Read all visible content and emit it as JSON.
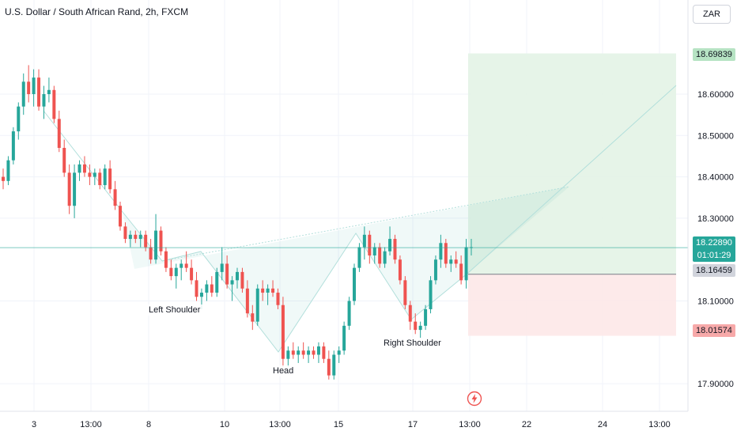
{
  "header": {
    "title": "U.S. Dollar / South African Rand, 2h, FXCM",
    "currency_button": "ZAR"
  },
  "price_labels": {
    "target": "18.69839",
    "current": "18.22890",
    "countdown": "01:01:29",
    "entry": "18.16459",
    "stop": "18.01574"
  },
  "annotations": {
    "left_shoulder": "Left Shoulder",
    "head": "Head",
    "right_shoulder": "Right Shoulder"
  },
  "icons": {
    "alert": "lightning-bolt-icon"
  },
  "colors": {
    "up": "#26a69a",
    "down": "#ef5350",
    "profit_zone": "#e3f3e6",
    "loss_zone": "#fde8e8",
    "target_label": "#b6e3c3",
    "current_label": "#26a69a",
    "entry_label": "#d1d4dc",
    "stop_label": "#f7a9a9"
  },
  "chart_data": {
    "type": "candlestick",
    "y_ticks": [
      "18.60000",
      "18.50000",
      "18.40000",
      "18.30000",
      "18.10000",
      "17.90000"
    ],
    "x_ticks": [
      "3",
      "13:00",
      "8",
      "10",
      "13:00",
      "15",
      "17",
      "13:00",
      "22",
      "24",
      "13:00"
    ],
    "ylim": [
      17.86,
      18.77
    ],
    "candles": [
      [
        18.4,
        18.42,
        18.37,
        18.39
      ],
      [
        18.39,
        18.45,
        18.38,
        18.44
      ],
      [
        18.44,
        18.52,
        18.43,
        18.51
      ],
      [
        18.51,
        18.58,
        18.49,
        18.57
      ],
      [
        18.57,
        18.65,
        18.55,
        18.63
      ],
      [
        18.63,
        18.67,
        18.58,
        18.6
      ],
      [
        18.6,
        18.66,
        18.57,
        18.64
      ],
      [
        18.64,
        18.66,
        18.56,
        18.57
      ],
      [
        18.57,
        18.62,
        18.54,
        18.6
      ],
      [
        18.6,
        18.64,
        18.58,
        18.61
      ],
      [
        18.61,
        18.62,
        18.53,
        18.54
      ],
      [
        18.54,
        18.56,
        18.46,
        18.47
      ],
      [
        18.47,
        18.49,
        18.4,
        18.41
      ],
      [
        18.41,
        18.43,
        18.31,
        18.33
      ],
      [
        18.33,
        18.43,
        18.3,
        18.41
      ],
      [
        18.41,
        18.44,
        18.39,
        18.43
      ],
      [
        18.43,
        18.45,
        18.4,
        18.41
      ],
      [
        18.41,
        18.43,
        18.38,
        18.4
      ],
      [
        18.4,
        18.42,
        18.38,
        18.41
      ],
      [
        18.41,
        18.42,
        18.37,
        18.38
      ],
      [
        18.38,
        18.43,
        18.37,
        18.42
      ],
      [
        18.42,
        18.44,
        18.36,
        18.37
      ],
      [
        18.37,
        18.39,
        18.32,
        18.33
      ],
      [
        18.33,
        18.34,
        18.27,
        18.28
      ],
      [
        18.28,
        18.29,
        18.24,
        18.25
      ],
      [
        18.25,
        18.27,
        18.23,
        18.26
      ],
      [
        18.26,
        18.27,
        18.24,
        18.25
      ],
      [
        18.25,
        18.27,
        18.23,
        18.26
      ],
      [
        18.26,
        18.27,
        18.22,
        18.23
      ],
      [
        18.23,
        18.25,
        18.19,
        18.2
      ],
      [
        18.2,
        18.31,
        18.19,
        18.27
      ],
      [
        18.27,
        18.28,
        18.21,
        18.22
      ],
      [
        18.22,
        18.23,
        18.17,
        18.18
      ],
      [
        18.18,
        18.2,
        18.15,
        18.16
      ],
      [
        18.16,
        18.19,
        18.13,
        18.18
      ],
      [
        18.18,
        18.2,
        18.15,
        18.19
      ],
      [
        18.19,
        18.22,
        18.17,
        18.18
      ],
      [
        18.18,
        18.2,
        18.14,
        18.15
      ],
      [
        18.15,
        18.17,
        18.1,
        18.11
      ],
      [
        18.11,
        18.13,
        18.08,
        18.12
      ],
      [
        18.12,
        18.15,
        18.1,
        18.14
      ],
      [
        18.14,
        18.16,
        18.11,
        18.12
      ],
      [
        18.12,
        18.18,
        18.11,
        18.17
      ],
      [
        18.17,
        18.23,
        18.15,
        18.19
      ],
      [
        18.19,
        18.21,
        18.13,
        18.14
      ],
      [
        18.14,
        18.16,
        18.1,
        18.15
      ],
      [
        18.15,
        18.18,
        18.13,
        18.17
      ],
      [
        18.17,
        18.18,
        18.12,
        18.13
      ],
      [
        18.13,
        18.15,
        18.06,
        18.07
      ],
      [
        18.07,
        18.09,
        18.03,
        18.05
      ],
      [
        18.05,
        18.14,
        18.04,
        18.13
      ],
      [
        18.13,
        18.15,
        18.1,
        18.12
      ],
      [
        18.12,
        18.14,
        18.09,
        18.13
      ],
      [
        18.13,
        18.15,
        18.11,
        18.12
      ],
      [
        18.12,
        18.13,
        18.08,
        18.09
      ],
      [
        18.09,
        18.11,
        17.94,
        17.96
      ],
      [
        17.96,
        17.99,
        17.94,
        17.98
      ],
      [
        17.98,
        18.0,
        17.96,
        17.97
      ],
      [
        17.97,
        17.99,
        17.95,
        17.98
      ],
      [
        17.98,
        18.0,
        17.96,
        17.97
      ],
      [
        17.97,
        17.99,
        17.95,
        17.98
      ],
      [
        17.98,
        17.99,
        17.96,
        17.97
      ],
      [
        17.97,
        18.0,
        17.95,
        17.99
      ],
      [
        17.99,
        18.0,
        17.95,
        17.96
      ],
      [
        17.96,
        17.98,
        17.91,
        17.92
      ],
      [
        17.92,
        17.98,
        17.91,
        17.97
      ],
      [
        17.97,
        17.99,
        17.95,
        17.98
      ],
      [
        17.98,
        18.05,
        17.97,
        18.04
      ],
      [
        18.04,
        18.11,
        18.03,
        18.1
      ],
      [
        18.1,
        18.19,
        18.09,
        18.18
      ],
      [
        18.18,
        18.24,
        18.17,
        18.23
      ],
      [
        18.23,
        18.28,
        18.2,
        18.26
      ],
      [
        18.26,
        18.27,
        18.19,
        18.21
      ],
      [
        18.21,
        18.24,
        18.19,
        18.23
      ],
      [
        18.23,
        18.24,
        18.18,
        18.19
      ],
      [
        18.19,
        18.23,
        18.18,
        18.22
      ],
      [
        18.22,
        18.28,
        18.21,
        18.25
      ],
      [
        18.25,
        18.26,
        18.19,
        18.2
      ],
      [
        18.2,
        18.21,
        18.14,
        18.15
      ],
      [
        18.15,
        18.16,
        18.08,
        18.09
      ],
      [
        18.09,
        18.1,
        18.03,
        18.05
      ],
      [
        18.05,
        18.07,
        18.02,
        18.03
      ],
      [
        18.03,
        18.05,
        18.01,
        18.04
      ],
      [
        18.04,
        18.09,
        18.03,
        18.08
      ],
      [
        18.08,
        18.16,
        18.07,
        18.15
      ],
      [
        18.15,
        18.21,
        18.14,
        18.2
      ],
      [
        18.2,
        18.26,
        18.18,
        18.24
      ],
      [
        18.24,
        18.25,
        18.18,
        18.19
      ],
      [
        18.19,
        18.21,
        18.17,
        18.2
      ],
      [
        18.2,
        18.22,
        18.18,
        18.19
      ],
      [
        18.19,
        18.21,
        18.14,
        18.15
      ],
      [
        18.15,
        18.25,
        18.13,
        18.23
      ],
      [
        18.23,
        18.25,
        18.21,
        18.23
      ]
    ]
  }
}
